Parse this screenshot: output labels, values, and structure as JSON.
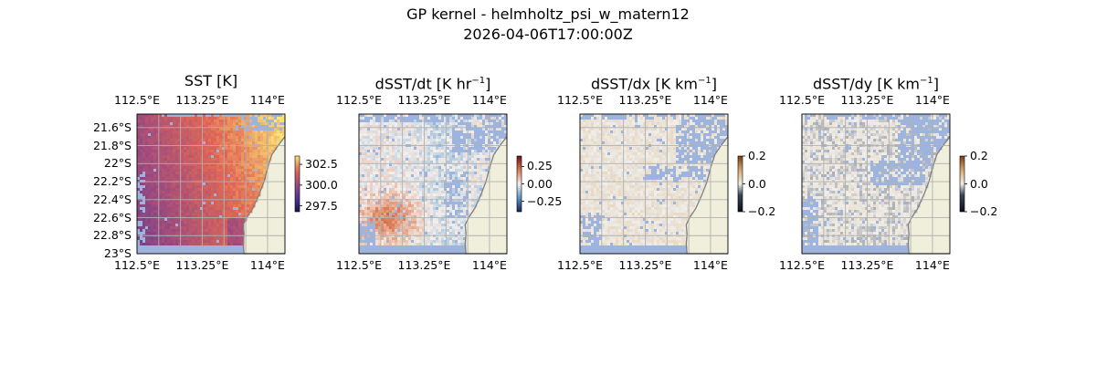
{
  "figure": {
    "title": "GP kernel - helmholtz_psi_w_matern12",
    "subtitle": "2026-04-06T17:00:00Z"
  },
  "colors": {
    "land": "#efefdb",
    "masked": "#9db4de",
    "grid": "#b0b0b0",
    "coast": "#7f7f7f"
  },
  "chart_data": [
    {
      "type": "heatmap",
      "title": "SST [K]",
      "title_sup": "",
      "x_ticks": [
        "112.5°E",
        "113.25°E",
        "114°E"
      ],
      "y_ticks": [
        "21.6°S",
        "21.8°S",
        "22°S",
        "22.2°S",
        "22.4°S",
        "22.6°S",
        "22.8°S",
        "23°S"
      ],
      "xlim": [
        112.5,
        114.2
      ],
      "ylim": [
        -23.0,
        -21.45
      ],
      "colormap": "thermal",
      "colorbar": {
        "ticks": [
          "302.5",
          "300.0",
          "297.5"
        ],
        "values": [
          302.5,
          300.0,
          297.5
        ],
        "range": [
          296.8,
          303.5
        ]
      },
      "field": {
        "base": 299.3,
        "east_warming": 3.2,
        "north_warming": 1.0,
        "noise": 0.3
      }
    },
    {
      "type": "heatmap",
      "title": "dSST/dt [K hr",
      "title_sup": "−1",
      "title_tail": "]",
      "x_ticks": [
        "112.5°E",
        "113.25°E",
        "114°E"
      ],
      "y_ticks": [],
      "xlim": [
        112.5,
        114.2
      ],
      "ylim": [
        -23.0,
        -21.45
      ],
      "colormap": "diverging",
      "colorbar": {
        "ticks": [
          "0.25",
          "0.00",
          "−0.25"
        ],
        "values": [
          0.25,
          0.0,
          -0.25
        ],
        "range": [
          -0.4,
          0.4
        ]
      },
      "field": {
        "hotspot_lon": 112.85,
        "hotspot_lat": -22.6,
        "hotspot_amp": 0.18,
        "noise": 0.06
      }
    },
    {
      "type": "heatmap",
      "title": "dSST/dx [K km",
      "title_sup": "−1",
      "title_tail": "]",
      "x_ticks": [
        "112.5°E",
        "113.25°E",
        "114°E"
      ],
      "y_ticks": [],
      "xlim": [
        112.5,
        114.2
      ],
      "ylim": [
        -23.0,
        -21.45
      ],
      "colormap": "gradient",
      "colorbar": {
        "ticks": [
          "0.2",
          "0.0",
          "−0.2"
        ],
        "values": [
          0.2,
          0.0,
          -0.2
        ],
        "range": [
          -0.2,
          0.2
        ]
      },
      "field": {
        "noise": 0.02
      }
    },
    {
      "type": "heatmap",
      "title": "dSST/dy [K km",
      "title_sup": "−1",
      "title_tail": "]",
      "x_ticks": [
        "112.5°E",
        "113.25°E",
        "114°E"
      ],
      "y_ticks": [],
      "xlim": [
        112.5,
        114.2
      ],
      "ylim": [
        -23.0,
        -21.45
      ],
      "colormap": "gradient",
      "colorbar": {
        "ticks": [
          "0.2",
          "0.0",
          "−0.2"
        ],
        "values": [
          0.2,
          0.0,
          -0.2
        ],
        "range": [
          -0.2,
          0.2
        ]
      },
      "field": {
        "noise": 0.025
      }
    }
  ]
}
